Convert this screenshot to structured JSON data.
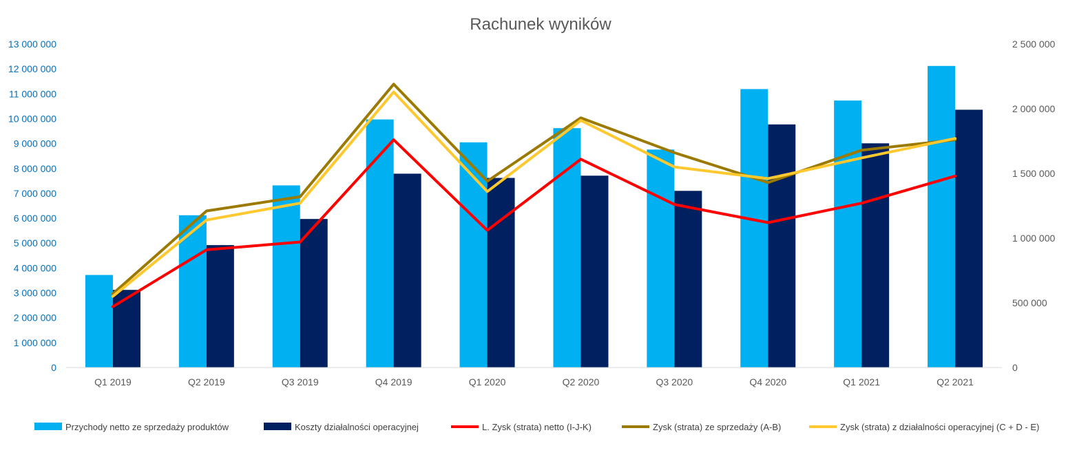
{
  "chart_data": {
    "type": "bar",
    "title": "Rachunek wyników",
    "categories": [
      "Q1 2019",
      "Q2 2019",
      "Q3 2019",
      "Q4 2019",
      "Q1 2020",
      "Q2 2020",
      "Q3 2020",
      "Q4 2020",
      "Q1 2021",
      "Q2 2021"
    ],
    "y_left": {
      "min": 0,
      "max": 13000000,
      "step": 1000000,
      "tick_labels": [
        "0",
        "1 000 000",
        "2 000 000",
        "3 000 000",
        "4 000 000",
        "5 000 000",
        "6 000 000",
        "7 000 000",
        "8 000 000",
        "9 000 000",
        "10 000 000",
        "11 000 000",
        "12 000 000",
        "13 000 000"
      ],
      "color": "#0070C0"
    },
    "y_right": {
      "min": 0,
      "max": 2500000,
      "step": 500000,
      "tick_labels": [
        "0",
        "500 000",
        "1 000 000",
        "1 500 000",
        "2 000 000",
        "2 500 000"
      ],
      "color": "#595959"
    },
    "bar_series": [
      {
        "name": "Przychody netto ze sprzedaży produktów",
        "color": "#00B0F0",
        "axis": "left",
        "values": [
          3720000,
          6120000,
          7320000,
          9970000,
          9050000,
          9620000,
          8760000,
          11190000,
          10730000,
          12120000
        ]
      },
      {
        "name": "Koszty działalności operacyjnej",
        "color": "#002060",
        "axis": "left",
        "values": [
          3120000,
          4920000,
          5970000,
          7790000,
          7620000,
          7710000,
          7100000,
          9770000,
          9010000,
          10360000
        ]
      }
    ],
    "line_series": [
      {
        "name": "L. Zysk (strata) netto (I-J-K)",
        "color": "#FF0000",
        "axis": "right",
        "values": [
          470000,
          910000,
          970000,
          1760000,
          1060000,
          1610000,
          1260000,
          1120000,
          1270000,
          1480000
        ]
      },
      {
        "name": "Zysk (strata) ze sprzedaży (A-B)",
        "color": "#9C7A00",
        "axis": "right",
        "values": [
          570000,
          1210000,
          1320000,
          2190000,
          1440000,
          1930000,
          1660000,
          1430000,
          1680000,
          1760000
        ]
      },
      {
        "name": "Zysk (strata) z działalności operacyjnej (C + D - E)",
        "color": "#FFC82E",
        "axis": "right",
        "values": [
          550000,
          1140000,
          1270000,
          2130000,
          1360000,
          1910000,
          1550000,
          1460000,
          1620000,
          1770000
        ]
      }
    ],
    "legend_position": "bottom",
    "grid": false
  }
}
